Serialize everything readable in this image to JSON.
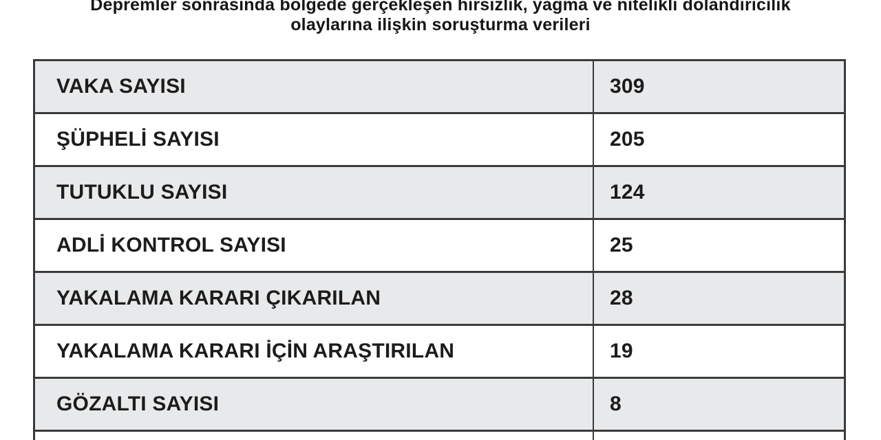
{
  "title": {
    "line1": "Depremler sonrasında bölgede gerçekleşen hırsızlık, yağma ve nitelikli dolandırıcılık",
    "line2": "olaylarına ilişkin soruşturma verileri"
  },
  "chart_data": {
    "type": "table",
    "title": "Depremler sonrasında bölgede gerçekleşen hırsızlık, yağma ve nitelikli dolandırıcılık olaylarına ilişkin soruşturma verileri",
    "rows": [
      {
        "label": "VAKA SAYISI",
        "value": 309
      },
      {
        "label": "ŞÜPHELİ SAYISI",
        "value": 205
      },
      {
        "label": "TUTUKLU SAYISI",
        "value": 124
      },
      {
        "label": "ADLİ KONTROL SAYISI",
        "value": 25
      },
      {
        "label": "YAKALAMA KARARI ÇIKARILAN",
        "value": 28
      },
      {
        "label": "YAKALAMA KARARI İÇİN ARAŞTIRILAN",
        "value": 19
      },
      {
        "label": "GÖZALTI SAYISI",
        "value": 8
      }
    ],
    "layout": {
      "row_shading": "alternating, first row shaded",
      "partial_ninth_row_visible_at_bottom": true
    }
  },
  "colors": {
    "background": "#ffffff",
    "row_shaded": "#e8e9ea",
    "row_plain": "#ffffff",
    "border": "#3a3a3a",
    "text": "#1c1c1c"
  }
}
